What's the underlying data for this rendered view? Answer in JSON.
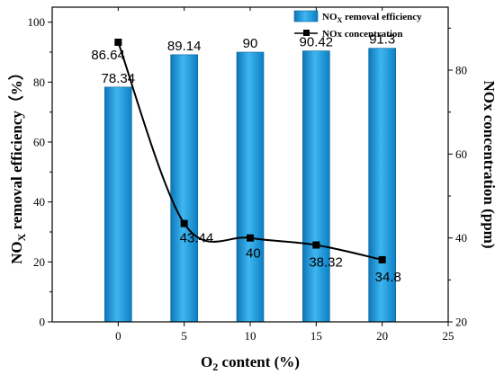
{
  "chart_data": {
    "type": "bar",
    "x": [
      0,
      5,
      10,
      15,
      20
    ],
    "xlim": [
      -5,
      25
    ],
    "xticks": [
      "0",
      "5",
      "10",
      "15",
      "20",
      "25"
    ],
    "xlabel_main": "O",
    "xlabel_sub": "2",
    "xlabel_rest": " content (%)",
    "ylabel_main": "NO",
    "ylabel_sub": "X",
    "ylabel_rest": " removal efficiency（%）",
    "ylim": [
      0,
      105
    ],
    "yticks": [
      "0",
      "20",
      "40",
      "60",
      "80",
      "100"
    ],
    "y2label": "NOx concentration (ppm)",
    "y2lim": [
      20,
      95
    ],
    "y2ticks": [
      "20",
      "40",
      "60",
      "80"
    ],
    "legend_position": "top-right",
    "series": [
      {
        "name_main": "NO",
        "name_sub": "X",
        "name_rest": " removal efficiency",
        "type": "bar",
        "axis": "left",
        "color": "#1e9ee0",
        "values": [
          78.34,
          89.14,
          90,
          90.42,
          91.3
        ],
        "labels": [
          "78.34",
          "89.14",
          "90",
          "90.42",
          "91.3"
        ]
      },
      {
        "name": "NOx concentration",
        "type": "line",
        "axis": "right",
        "color": "#000000",
        "values": [
          86.64,
          43.44,
          40,
          38.32,
          34.8
        ],
        "labels": [
          "86.64",
          "43.44",
          "40",
          "38.32",
          "34.8"
        ]
      }
    ]
  }
}
